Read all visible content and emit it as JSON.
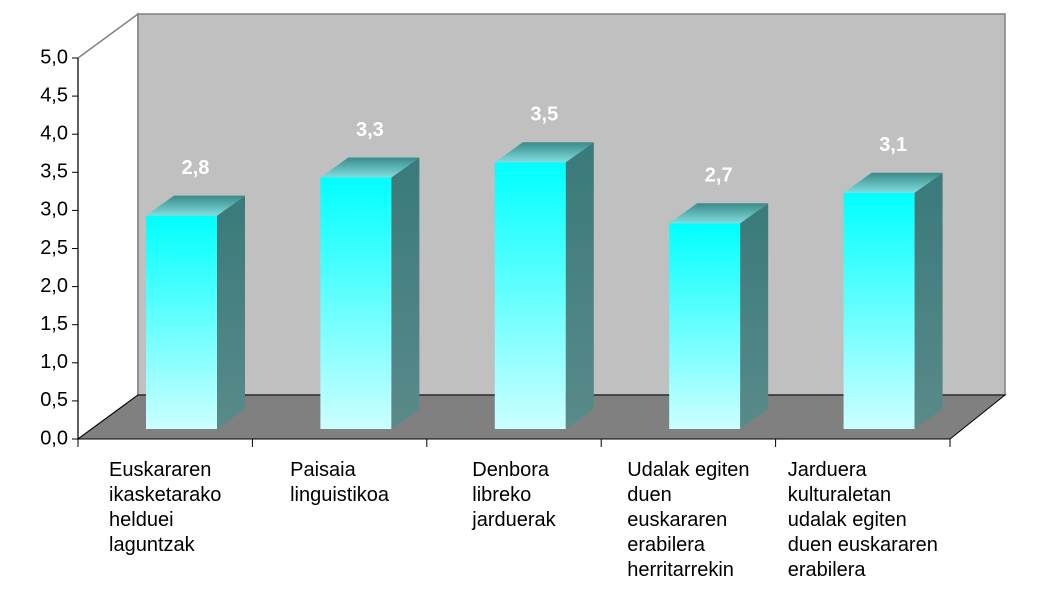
{
  "chart_data": {
    "type": "bar3d",
    "categories": [
      "Euskararen\nikasketarako\nhelduei\nlaguntzak",
      "Paisaia\nlinguistikoa",
      "Denbora\nlibreko\njarduerak",
      "Udalak egiten\nduen\neuskararen\nerabilera\nherritarrekin",
      "Jarduera\nkulturaletan\nudalak egiten\nduen euskararen\nerabilera"
    ],
    "values": [
      2.8,
      3.3,
      3.5,
      2.7,
      3.1
    ],
    "value_labels": [
      "2,8",
      "3,3",
      "3,5",
      "2,7",
      "3,1"
    ],
    "color": "#00ffff",
    "ylim": [
      0,
      5
    ],
    "yticks": [
      {
        "value": 0,
        "label": "0,0"
      },
      {
        "value": 0.5,
        "label": "0,5"
      },
      {
        "value": 1,
        "label": "1,0"
      },
      {
        "value": 1.5,
        "label": "1,5"
      },
      {
        "value": 2,
        "label": "2,0"
      },
      {
        "value": 2.5,
        "label": "2,5"
      },
      {
        "value": 3,
        "label": "3,0"
      },
      {
        "value": 3.5,
        "label": "3,5"
      },
      {
        "value": 4,
        "label": "4,0"
      },
      {
        "value": 4.5,
        "label": "4,5"
      },
      {
        "value": 5,
        "label": "5,0"
      }
    ],
    "grid": false
  }
}
